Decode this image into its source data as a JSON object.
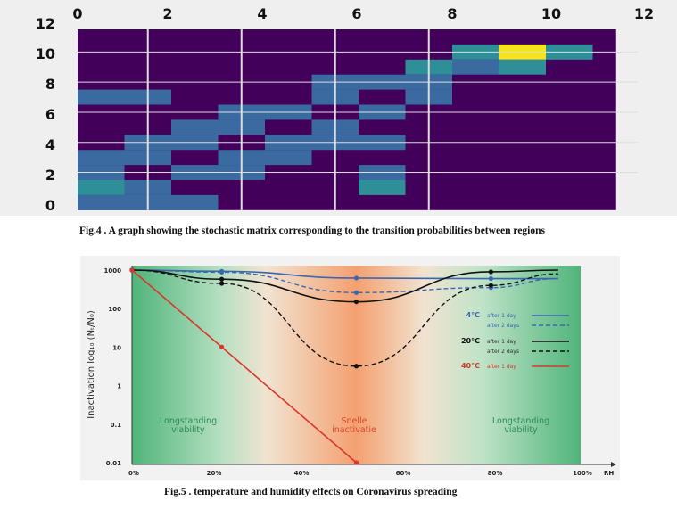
{
  "fig4": {
    "caption": "Fig.4 . A graph showing the stochastic matrix corresponding to the transition probabilities between regions",
    "x_ticks": [
      "0",
      "2",
      "4",
      "6",
      "8",
      "10",
      "12"
    ],
    "y_ticks": [
      "0",
      "2",
      "4",
      "6",
      "8",
      "10",
      "12"
    ],
    "colors": {
      "background": "#43005a",
      "low": "#3b6aa0",
      "mid": "#2f8f98",
      "high": "#f5e31e"
    }
  },
  "fig5": {
    "caption": "Fig.5 . temperature and humidity effects on Coronavirus spreading",
    "ylabel": "Inactivation log₁₀ (Nₜ/N₀)",
    "y_ticks": [
      "1000",
      "100",
      "10",
      "1",
      "0.1",
      "0.01"
    ],
    "x_ticks": [
      "0%",
      "20%",
      "40%",
      "60%",
      "80%",
      "100%"
    ],
    "x_unit": "RH",
    "zone_left": [
      "Longstanding",
      "viability"
    ],
    "zone_mid": [
      "Snelle",
      "inactivatie"
    ],
    "zone_right": [
      "Longstanding",
      "viability"
    ],
    "legend": [
      {
        "temp": "4°C",
        "note": "after 1 day",
        "color": "#3b66b0",
        "style": "solid"
      },
      {
        "temp": "",
        "note": "after 2 days",
        "color": "#3b66b0",
        "style": "dashed"
      },
      {
        "temp": "20°C",
        "note": "after 1 day",
        "color": "#111111",
        "style": "solid"
      },
      {
        "temp": "",
        "note": "after 2 days",
        "color": "#111111",
        "style": "dashed"
      },
      {
        "temp": "40°C",
        "note": "after 1 day",
        "color": "#d8372c",
        "style": "solid"
      }
    ]
  },
  "chart_data": [
    {
      "type": "heatmap",
      "xlim": [
        0,
        12
      ],
      "ylim": [
        0,
        12
      ],
      "x_ticks": [
        0,
        2,
        4,
        6,
        8,
        10,
        12
      ],
      "y_ticks": [
        0,
        2,
        4,
        6,
        8,
        10,
        12
      ],
      "cells": [
        {
          "row": 10,
          "col": 9,
          "value": 1.0
        },
        {
          "row": 10,
          "col": 8,
          "value": 0.5
        },
        {
          "row": 10,
          "col": 10,
          "value": 0.5
        },
        {
          "row": 9,
          "col": 7,
          "value": 0.5
        },
        {
          "row": 9,
          "col": 9,
          "value": 0.5
        },
        {
          "row": 9,
          "col": 8,
          "value": 0.3
        },
        {
          "row": 8,
          "col": 5,
          "value": 0.3
        },
        {
          "row": 8,
          "col": 6,
          "value": 0.3
        },
        {
          "row": 8,
          "col": 7,
          "value": 0.3
        },
        {
          "row": 7,
          "col": 0,
          "value": 0.3
        },
        {
          "row": 7,
          "col": 1,
          "value": 0.3
        },
        {
          "row": 7,
          "col": 5,
          "value": 0.3
        },
        {
          "row": 7,
          "col": 7,
          "value": 0.3
        },
        {
          "row": 6,
          "col": 3,
          "value": 0.3
        },
        {
          "row": 6,
          "col": 4,
          "value": 0.3
        },
        {
          "row": 6,
          "col": 6,
          "value": 0.3
        },
        {
          "row": 5,
          "col": 2,
          "value": 0.3
        },
        {
          "row": 5,
          "col": 3,
          "value": 0.3
        },
        {
          "row": 5,
          "col": 5,
          "value": 0.3
        },
        {
          "row": 4,
          "col": 1,
          "value": 0.3
        },
        {
          "row": 4,
          "col": 2,
          "value": 0.3
        },
        {
          "row": 4,
          "col": 4,
          "value": 0.3
        },
        {
          "row": 4,
          "col": 5,
          "value": 0.3
        },
        {
          "row": 4,
          "col": 6,
          "value": 0.3
        },
        {
          "row": 3,
          "col": 0,
          "value": 0.3
        },
        {
          "row": 3,
          "col": 1,
          "value": 0.3
        },
        {
          "row": 3,
          "col": 3,
          "value": 0.3
        },
        {
          "row": 3,
          "col": 4,
          "value": 0.3
        },
        {
          "row": 2,
          "col": 0,
          "value": 0.3
        },
        {
          "row": 2,
          "col": 2,
          "value": 0.3
        },
        {
          "row": 2,
          "col": 3,
          "value": 0.3
        },
        {
          "row": 2,
          "col": 6,
          "value": 0.3
        },
        {
          "row": 1,
          "col": 0,
          "value": 0.5
        },
        {
          "row": 1,
          "col": 1,
          "value": 0.3
        },
        {
          "row": 1,
          "col": 6,
          "value": 0.5
        },
        {
          "row": 0,
          "col": 0,
          "value": 0.3
        },
        {
          "row": 0,
          "col": 1,
          "value": 0.3
        },
        {
          "row": 0,
          "col": 2,
          "value": 0.3
        }
      ]
    },
    {
      "type": "line",
      "ylabel": "Inactivation log₁₀ (Nₜ/N₀)",
      "xlabel": "RH",
      "y_scale": "log",
      "ylim": [
        0.01,
        1000
      ],
      "xlim": [
        0,
        100
      ],
      "series": [
        {
          "name": "4°C after 1 day",
          "style": "solid",
          "color": "#3b66b0",
          "points": [
            [
              0,
              1000
            ],
            [
              20,
              930
            ],
            [
              50,
              620
            ],
            [
              80,
              600
            ],
            [
              95,
              600
            ]
          ]
        },
        {
          "name": "4°C after 2 days",
          "style": "dashed",
          "color": "#3b66b0",
          "points": [
            [
              0,
              1000
            ],
            [
              20,
              880
            ],
            [
              50,
              260
            ],
            [
              80,
              350
            ],
            [
              95,
              600
            ]
          ]
        },
        {
          "name": "20°C after 1 day",
          "style": "solid",
          "color": "#111111",
          "points": [
            [
              0,
              1000
            ],
            [
              20,
              580
            ],
            [
              50,
              150
            ],
            [
              80,
              900
            ],
            [
              95,
              1000
            ]
          ]
        },
        {
          "name": "20°C after 2 days",
          "style": "dashed",
          "color": "#111111",
          "points": [
            [
              0,
              1000
            ],
            [
              20,
              450
            ],
            [
              50,
              3.2
            ],
            [
              80,
              400
            ],
            [
              95,
              800
            ]
          ]
        },
        {
          "name": "40°C after 1 day",
          "style": "solid",
          "color": "#d8372c",
          "points": [
            [
              0,
              1000
            ],
            [
              20,
              10
            ],
            [
              50,
              0.01
            ]
          ]
        }
      ]
    }
  ]
}
